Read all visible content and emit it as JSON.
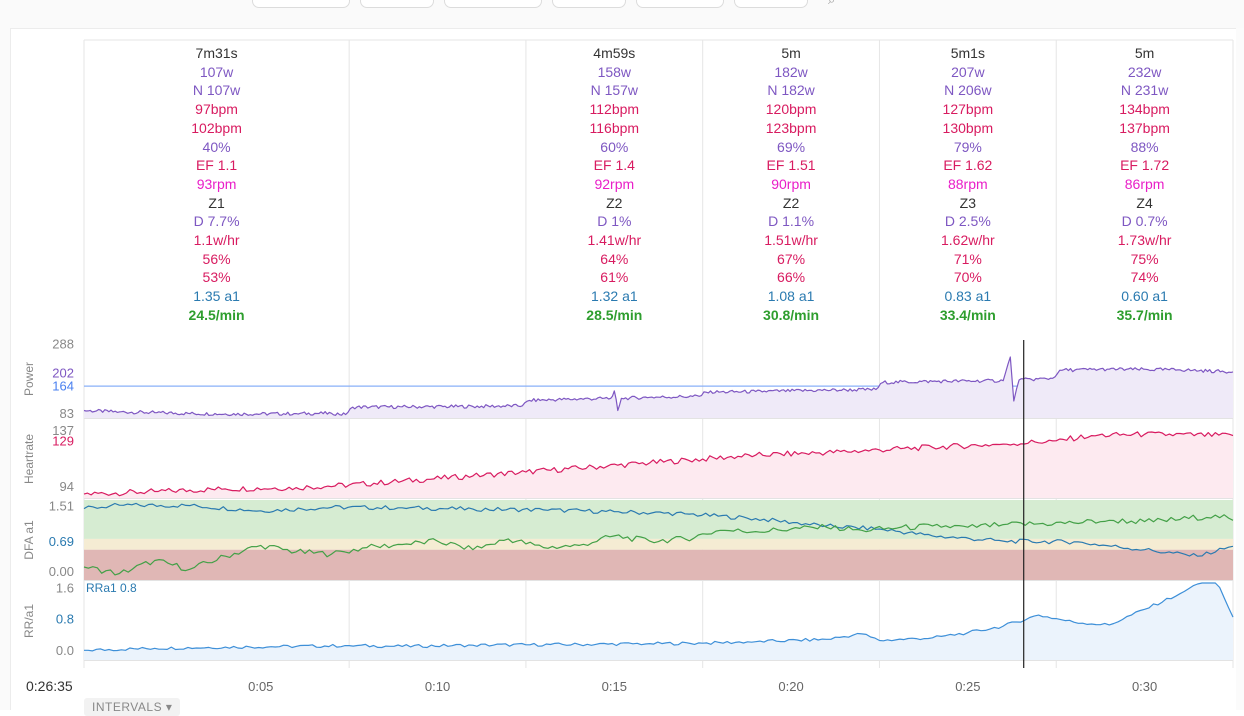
{
  "time_readout": "0:26:35",
  "intervals_label": "INTERVALS",
  "intervals": [
    {
      "dur": "7m31s",
      "pow": "107w",
      "np": "N 107w",
      "hr_avg": "97bpm",
      "hr_max": "102bpm",
      "pct": "40%",
      "ef": "EF 1.1",
      "cad": "93rpm",
      "zone": "Z1",
      "decoupling": "D 7.7%",
      "whr": "1.1w/hr",
      "pct2": "56%",
      "pct3": "53%",
      "a1": "1.35 a1",
      "rr": "24.5/min"
    },
    {
      "dur": "",
      "pow": "",
      "np": "",
      "hr_avg": "",
      "hr_max": "",
      "pct": "",
      "ef": "",
      "cad": "",
      "zone": "",
      "decoupling": "",
      "whr": "",
      "pct2": "",
      "pct3": "",
      "a1": "",
      "rr": ""
    },
    {
      "dur": "4m59s",
      "pow": "158w",
      "np": "N 157w",
      "hr_avg": "112bpm",
      "hr_max": "116bpm",
      "pct": "60%",
      "ef": "EF 1.4",
      "cad": "92rpm",
      "zone": "Z2",
      "decoupling": "D 1%",
      "whr": "1.41w/hr",
      "pct2": "64%",
      "pct3": "61%",
      "a1": "1.32 a1",
      "rr": "28.5/min"
    },
    {
      "dur": "5m",
      "pow": "182w",
      "np": "N 182w",
      "hr_avg": "120bpm",
      "hr_max": "123bpm",
      "pct": "69%",
      "ef": "EF 1.51",
      "cad": "90rpm",
      "zone": "Z2",
      "decoupling": "D 1.1%",
      "whr": "1.51w/hr",
      "pct2": "67%",
      "pct3": "66%",
      "a1": "1.08 a1",
      "rr": "30.8/min"
    },
    {
      "dur": "5m1s",
      "pow": "207w",
      "np": "N 206w",
      "hr_avg": "127bpm",
      "hr_max": "130bpm",
      "pct": "79%",
      "ef": "EF 1.62",
      "cad": "88rpm",
      "zone": "Z3",
      "decoupling": "D 2.5%",
      "whr": "1.62w/hr",
      "pct2": "71%",
      "pct3": "70%",
      "a1": "0.83 a1",
      "rr": "33.4/min"
    },
    {
      "dur": "5m",
      "pow": "232w",
      "np": "N 231w",
      "hr_avg": "134bpm",
      "hr_max": "137bpm",
      "pct": "88%",
      "ef": "EF 1.72",
      "cad": "86rpm",
      "zone": "Z4",
      "decoupling": "D 0.7%",
      "whr": "1.73w/hr",
      "pct2": "75%",
      "pct3": "74%",
      "a1": "0.60 a1",
      "rr": "35.7/min"
    }
  ],
  "chart_data": {
    "type": "line",
    "x_unit": "minutes",
    "x_range": [
      0,
      32.5
    ],
    "x_ticks": [
      {
        "x": 5,
        "label": "0:05"
      },
      {
        "x": 10,
        "label": "0:10"
      },
      {
        "x": 15,
        "label": "0:15"
      },
      {
        "x": 20,
        "label": "0:20"
      },
      {
        "x": 25,
        "label": "0:25"
      },
      {
        "x": 30,
        "label": "0:30"
      }
    ],
    "interval_boundaries": [
      0,
      7.5,
      12.5,
      17.5,
      22.5,
      27.5,
      32.5
    ],
    "cursor_x": 26.58,
    "panels": [
      {
        "name": "Power",
        "ylim": [
          70,
          300
        ],
        "ticks": [
          {
            "v": 288,
            "label": "288",
            "color": "#888888"
          },
          {
            "v": 202,
            "label": "202",
            "color": "#7e57c2"
          },
          {
            "v": 164,
            "label": "164",
            "color": "#4a80f0"
          },
          {
            "v": 83,
            "label": "83",
            "color": "#888888"
          }
        ],
        "ref_line": 164,
        "ref_color": "#8ab0f8",
        "series": [
          {
            "color": "#7e57c2",
            "fill": "#efeaf8",
            "points": [
              [
                0,
                92
              ],
              [
                1,
                88
              ],
              [
                2,
                86
              ],
              [
                3,
                83
              ],
              [
                4,
                82
              ],
              [
                5,
                82
              ],
              [
                6,
                83
              ],
              [
                7,
                84
              ],
              [
                7.4,
                80
              ],
              [
                7.6,
                102
              ],
              [
                9,
                103
              ],
              [
                11,
                104
              ],
              [
                12.4,
                106
              ],
              [
                12.6,
                122
              ],
              [
                14,
                126
              ],
              [
                14.9,
                128
              ],
              [
                15,
                150
              ],
              [
                15.1,
                92
              ],
              [
                15.2,
                128
              ],
              [
                16,
                131
              ],
              [
                17.4,
                134
              ],
              [
                17.6,
                146
              ],
              [
                19,
                148
              ],
              [
                21,
                152
              ],
              [
                22.4,
                154
              ],
              [
                22.6,
                175
              ],
              [
                24,
                178
              ],
              [
                26,
                180
              ],
              [
                26.2,
                250
              ],
              [
                26.3,
                120
              ],
              [
                26.45,
                182
              ],
              [
                27.4,
                187
              ],
              [
                27.6,
                211
              ],
              [
                29,
                214
              ],
              [
                31,
                212
              ],
              [
                32.5,
                206
              ]
            ]
          }
        ]
      },
      {
        "name": "Heartrate",
        "ylim": [
          85,
          145
        ],
        "ticks": [
          {
            "v": 137,
            "label": "137",
            "color": "#888888"
          },
          {
            "v": 129,
            "label": "129",
            "color": "#d81b60"
          },
          {
            "v": 94,
            "label": "94",
            "color": "#888888"
          }
        ],
        "series": [
          {
            "color": "#d81b60",
            "fill": "#fdeaf0",
            "points": [
              [
                0,
                88
              ],
              [
                2,
                90
              ],
              [
                4,
                92
              ],
              [
                6,
                93
              ],
              [
                7.5,
                95
              ],
              [
                9,
                98
              ],
              [
                11,
                102
              ],
              [
                12.5,
                105
              ],
              [
                14,
                108
              ],
              [
                16,
                112
              ],
              [
                17.5,
                115
              ],
              [
                19,
                118
              ],
              [
                21,
                120
              ],
              [
                22.5,
                122
              ],
              [
                24,
                124
              ],
              [
                26,
                126.5
              ],
              [
                27.5,
                129
              ],
              [
                28.5,
                133
              ],
              [
                30,
                134
              ],
              [
                32.5,
                133
              ]
            ]
          }
        ]
      },
      {
        "name": "DFA a1",
        "ylim": [
          -0.2,
          1.65
        ],
        "ticks": [
          {
            "v": 1.51,
            "label": "1.51",
            "color": "#888888"
          },
          {
            "v": 0.69,
            "label": "0.69",
            "color": "#2a7ab0"
          },
          {
            "v": 0.0,
            "label": "0.00",
            "color": "#888888"
          }
        ],
        "bands": [
          {
            "from": 0.75,
            "to": 1.65,
            "color": "#d6ecd2"
          },
          {
            "from": 0.5,
            "to": 0.75,
            "color": "#f5ecd3"
          },
          {
            "from": -0.2,
            "to": 0.5,
            "color": "#e0b7b5"
          }
        ],
        "series": [
          {
            "color": "#2a7ab0",
            "points": [
              [
                0,
                1.45
              ],
              [
                1,
                1.53
              ],
              [
                3,
                1.52
              ],
              [
                5,
                1.4
              ],
              [
                7,
                1.48
              ],
              [
                9,
                1.47
              ],
              [
                11,
                1.44
              ],
              [
                13,
                1.42
              ],
              [
                15,
                1.38
              ],
              [
                17,
                1.33
              ],
              [
                19,
                1.22
              ],
              [
                21,
                1.05
              ],
              [
                22.5,
                0.98
              ],
              [
                24,
                0.82
              ],
              [
                26,
                0.7
              ],
              [
                28,
                0.68
              ],
              [
                30,
                0.5
              ],
              [
                31.5,
                0.35
              ],
              [
                32.5,
                0.58
              ]
            ]
          },
          {
            "color": "#43a047",
            "points": [
              [
                0,
                0.1
              ],
              [
                1,
                -0.05
              ],
              [
                2,
                0.25
              ],
              [
                3,
                0.05
              ],
              [
                3.5,
                0.2
              ],
              [
                4,
                0.35
              ],
              [
                5,
                0.6
              ],
              [
                6,
                0.45
              ],
              [
                7,
                0.4
              ],
              [
                8,
                0.55
              ],
              [
                9,
                0.62
              ],
              [
                10,
                0.7
              ],
              [
                11,
                0.5
              ],
              [
                12,
                0.75
              ],
              [
                13,
                0.55
              ],
              [
                14,
                0.6
              ],
              [
                15,
                0.82
              ],
              [
                16,
                0.7
              ],
              [
                17,
                0.75
              ],
              [
                18,
                0.95
              ],
              [
                19,
                0.92
              ],
              [
                20,
                0.98
              ],
              [
                21,
                1.02
              ],
              [
                22,
                0.95
              ],
              [
                23,
                1.0
              ],
              [
                24,
                1.05
              ],
              [
                25,
                1.02
              ],
              [
                26,
                1.08
              ],
              [
                27,
                1.1
              ],
              [
                28,
                1.12
              ],
              [
                29,
                1.18
              ],
              [
                30,
                1.15
              ],
              [
                31,
                1.2
              ],
              [
                32,
                1.3
              ],
              [
                32.5,
                1.18
              ]
            ]
          }
        ]
      },
      {
        "name": "RR/a1",
        "ylim": [
          -0.25,
          1.75
        ],
        "ticks": [
          {
            "v": 1.6,
            "label": "1.6",
            "color": "#888888"
          },
          {
            "v": 0.8,
            "label": "0.8",
            "color": "#2a7ab0"
          },
          {
            "v": 0.0,
            "label": "0.0",
            "color": "#888888"
          }
        ],
        "annotation": "RRa1 0.8",
        "series": [
          {
            "color": "#3d8fd8",
            "fill": "#ebf3fc",
            "points": [
              [
                0,
                0
              ],
              [
                2,
                0.05
              ],
              [
                4,
                0.08
              ],
              [
                6,
                0.1
              ],
              [
                7.5,
                0.12
              ],
              [
                9,
                0.1
              ],
              [
                11,
                0.13
              ],
              [
                12.5,
                0.14
              ],
              [
                14,
                0.15
              ],
              [
                16,
                0.17
              ],
              [
                17.5,
                0.18
              ],
              [
                19,
                0.22
              ],
              [
                21,
                0.28
              ],
              [
                22,
                0.42
              ],
              [
                22.5,
                0.25
              ],
              [
                24,
                0.32
              ],
              [
                25,
                0.45
              ],
              [
                26,
                0.62
              ],
              [
                27,
                0.9
              ],
              [
                28,
                0.72
              ],
              [
                29,
                0.65
              ],
              [
                30,
                1.05
              ],
              [
                31,
                1.45
              ],
              [
                31.5,
                1.7
              ],
              [
                32,
                1.85
              ],
              [
                32.5,
                0.85
              ]
            ]
          }
        ]
      }
    ]
  }
}
